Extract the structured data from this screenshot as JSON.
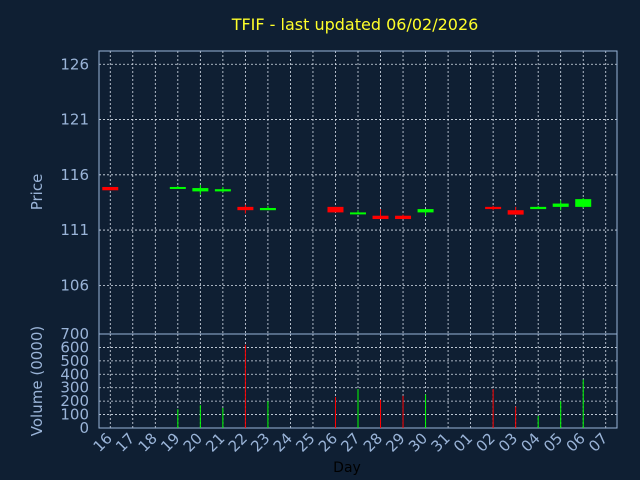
{
  "title": "TFIF - last updated 06/02/2026",
  "colors": {
    "background": "#0f1f33",
    "up": "#00ff00",
    "down": "#ff0000",
    "title": "#ffff2a",
    "axis_text": "#9ab4d8"
  },
  "chart_data": {
    "type": "candlestick",
    "title": "TFIF - last updated 06/02/2026",
    "xlabel": "Day",
    "ylabel": "Price",
    "volume_ylabel": "Volume (0000)",
    "grid": true,
    "ylim": [
      101.6,
      127.2
    ],
    "volume_ylim": [
      0,
      700
    ],
    "price_ticks": [
      126,
      121,
      116,
      111,
      106
    ],
    "volume_ticks": [
      700,
      600,
      500,
      400,
      300,
      200,
      100,
      0
    ],
    "x_ticks": [
      "16",
      "17",
      "18",
      "19",
      "20",
      "21",
      "22",
      "23",
      "24",
      "25",
      "26",
      "27",
      "28",
      "29",
      "30",
      "31",
      "01",
      "02",
      "03",
      "04",
      "05",
      "06",
      "07"
    ],
    "candles": [
      {
        "day": "16",
        "open": 114.9,
        "high": 114.9,
        "low": 114.6,
        "close": 114.6,
        "volume": 0
      },
      {
        "day": "19",
        "open": 114.9,
        "high": 115.0,
        "low": 114.8,
        "close": 114.9,
        "volume": 140
      },
      {
        "day": "20",
        "open": 114.5,
        "high": 115.1,
        "low": 114.2,
        "close": 114.8,
        "volume": 170
      },
      {
        "day": "21",
        "open": 114.5,
        "high": 114.9,
        "low": 114.4,
        "close": 114.7,
        "volume": 150
      },
      {
        "day": "22",
        "open": 113.1,
        "high": 113.3,
        "low": 112.5,
        "close": 112.8,
        "volume": 620
      },
      {
        "day": "23",
        "open": 112.8,
        "high": 113.2,
        "low": 112.8,
        "close": 113.0,
        "volume": 200
      },
      {
        "day": "26",
        "open": 113.1,
        "high": 113.1,
        "low": 112.6,
        "close": 112.6,
        "volume": 230
      },
      {
        "day": "27",
        "open": 112.5,
        "high": 112.8,
        "low": 112.5,
        "close": 112.6,
        "volume": 290
      },
      {
        "day": "28",
        "open": 112.3,
        "high": 112.9,
        "low": 112.0,
        "close": 112.0,
        "volume": 210
      },
      {
        "day": "29",
        "open": 112.3,
        "high": 112.4,
        "low": 112.0,
        "close": 112.0,
        "volume": 240
      },
      {
        "day": "30",
        "open": 112.6,
        "high": 112.9,
        "low": 112.3,
        "close": 112.9,
        "volume": 250
      },
      {
        "day": "02",
        "open": 113.1,
        "high": 113.2,
        "low": 112.8,
        "close": 112.9,
        "volume": 290
      },
      {
        "day": "03",
        "open": 112.8,
        "high": 113.1,
        "low": 112.4,
        "close": 112.4,
        "volume": 160
      },
      {
        "day": "04",
        "open": 112.9,
        "high": 113.2,
        "low": 112.9,
        "close": 113.1,
        "volume": 90
      },
      {
        "day": "05",
        "open": 113.1,
        "high": 113.7,
        "low": 112.8,
        "close": 113.4,
        "volume": 200
      },
      {
        "day": "06",
        "open": 113.1,
        "high": 113.9,
        "low": 113.0,
        "close": 113.8,
        "volume": 360
      }
    ]
  }
}
